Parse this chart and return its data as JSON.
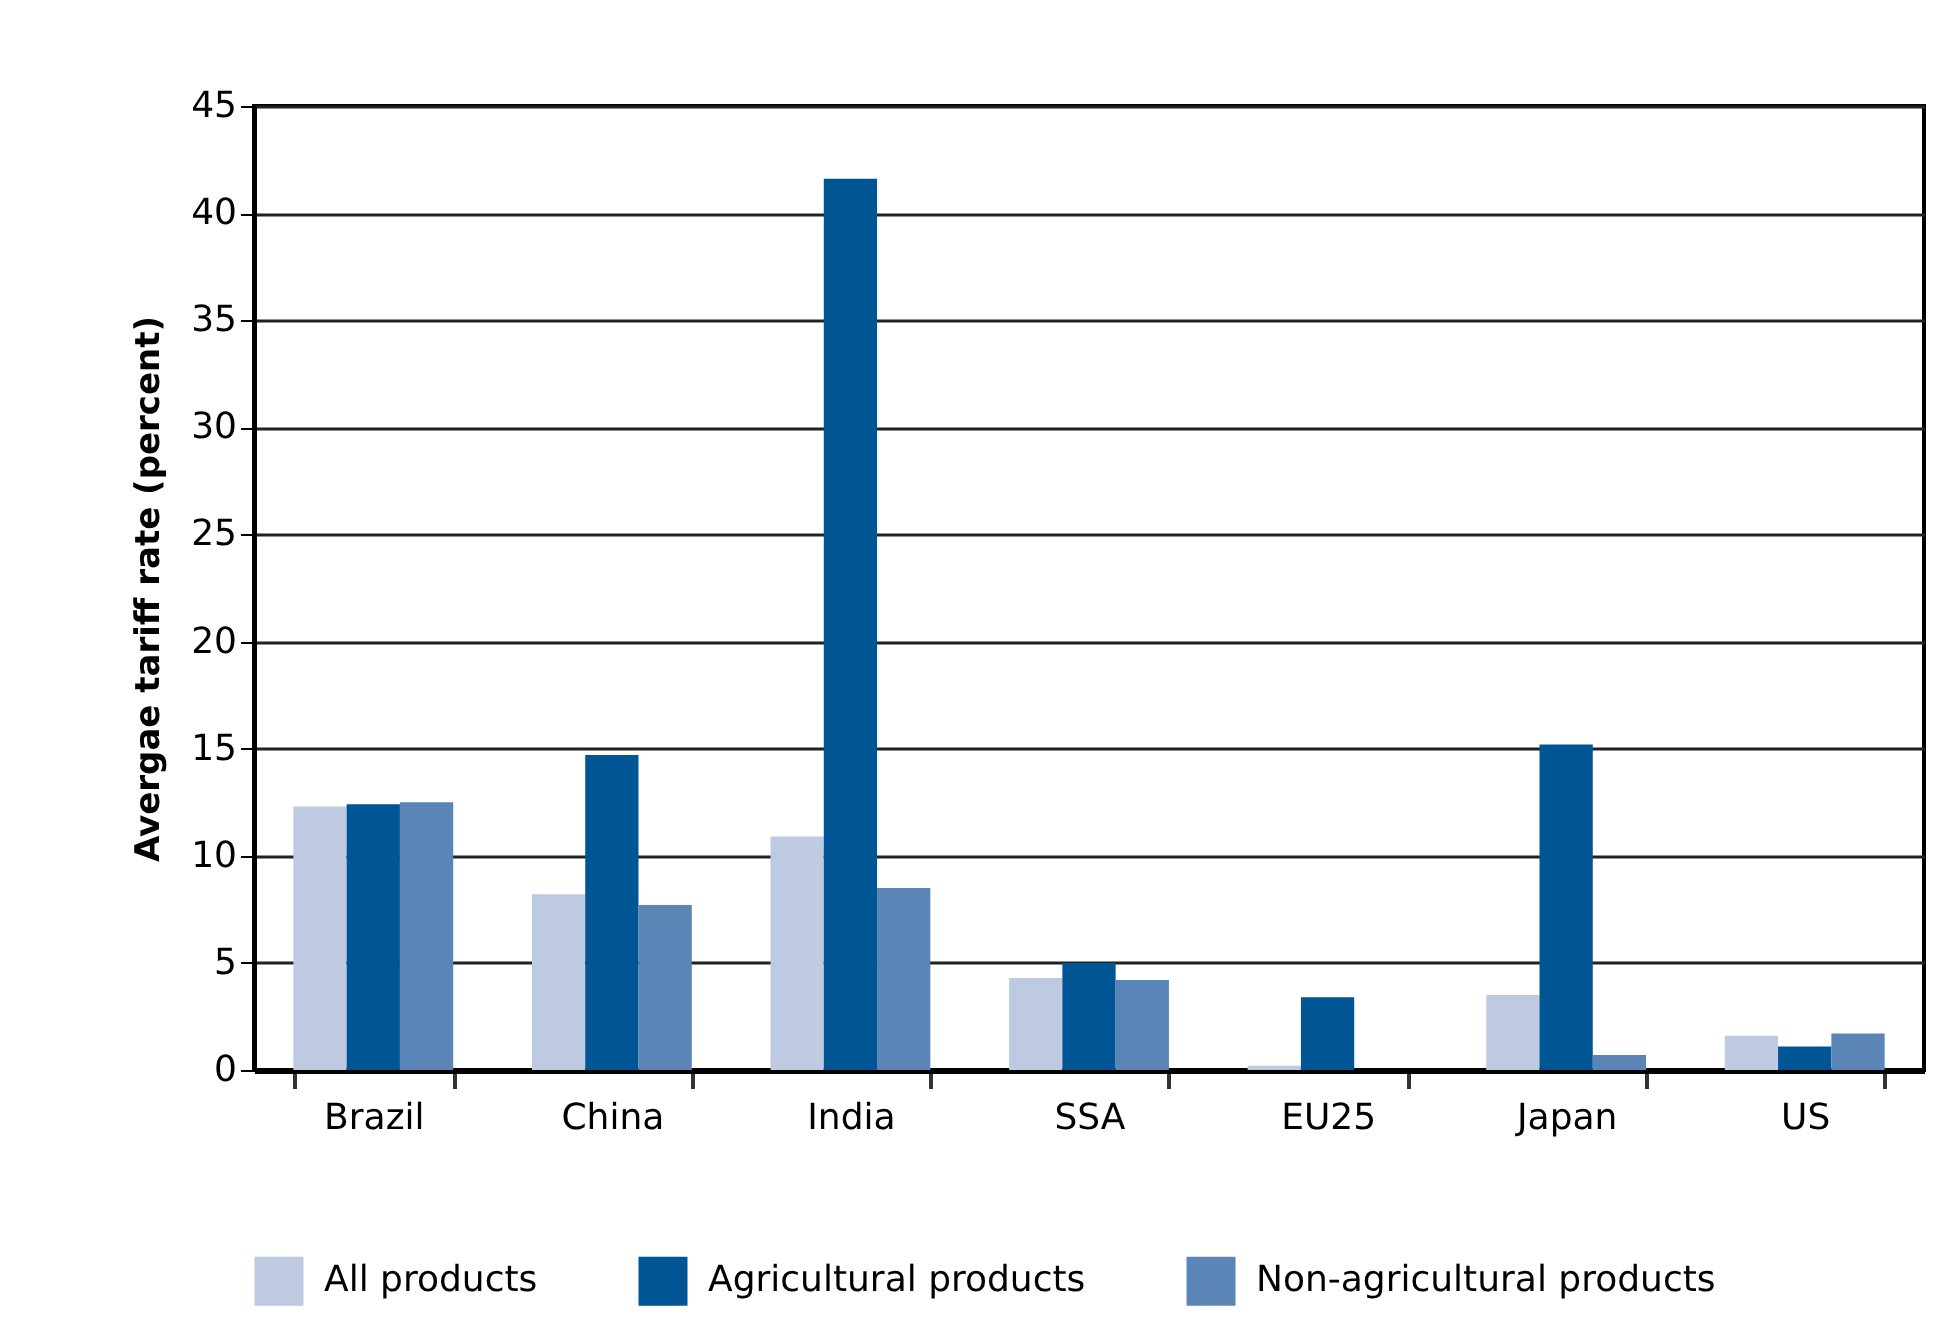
{
  "chart_data": {
    "type": "bar",
    "ylabel": "Avergae tariff rate (percent)",
    "categories": [
      "Brazil",
      "China",
      "India",
      "SSA",
      "EU25",
      "Japan",
      "US"
    ],
    "series": [
      {
        "name": "All products",
        "color": "#bec9e2",
        "values": [
          12.3,
          8.2,
          10.9,
          4.3,
          0.2,
          3.5,
          1.6
        ]
      },
      {
        "name": "Agricultural products",
        "color": "#005595",
        "values": [
          12.4,
          14.7,
          41.6,
          5.0,
          3.4,
          15.2,
          1.1
        ]
      },
      {
        "name": "Non-agricultural products",
        "color": "#5b84b7",
        "values": [
          12.5,
          7.7,
          8.5,
          4.2,
          0,
          0.7,
          1.7
        ]
      }
    ],
    "ylim": [
      0,
      45
    ],
    "yticks": [
      0,
      5,
      10,
      15,
      20,
      25,
      30,
      35,
      40,
      45
    ],
    "grid": "y",
    "legend": "bottom"
  }
}
